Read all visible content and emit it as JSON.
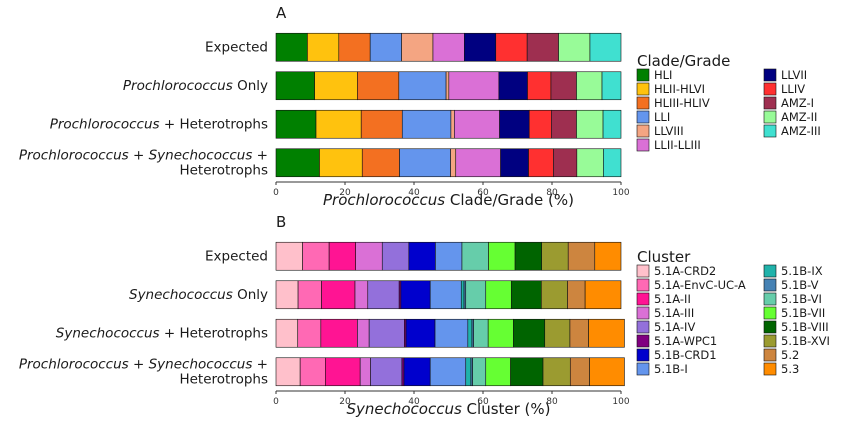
{
  "chart_data": [
    {
      "type": "bar",
      "orientation": "horizontal",
      "stacked": true,
      "panel_label": "A",
      "categories": [
        [
          {
            "t": "Expected",
            "i": false
          }
        ],
        [
          {
            "t": "Prochlorococcus",
            "i": true
          },
          {
            "t": " Only",
            "i": false
          }
        ],
        [
          {
            "t": "Prochlorococcus",
            "i": true
          },
          {
            "t": " + Heterotrophs",
            "i": false
          }
        ],
        [
          {
            "t": "Prochlorococcus",
            "i": true
          },
          {
            "t": " + ",
            "i": false
          },
          {
            "t": "Synechococcus",
            "i": true
          },
          {
            "t": " +",
            "i": false
          },
          {
            "t": "\nHeterotrophs",
            "i": false
          }
        ]
      ],
      "xlabel": [
        {
          "t": "Prochlorococcus",
          "i": true
        },
        {
          "t": " Clade/Grade (%)",
          "i": false
        }
      ],
      "xlim": [
        0,
        100
      ],
      "xticks": [
        "0",
        "20",
        "40",
        "60",
        "80",
        "100"
      ],
      "legend": {
        "title": "Clade/Grade",
        "position": "right",
        "columns": 2
      },
      "series": [
        {
          "name": "HLI",
          "color": "#008000",
          "values": [
            9.1,
            11.2,
            11.6,
            12.6
          ]
        },
        {
          "name": "HLII-HLVI",
          "color": "#FFC20E",
          "values": [
            9.1,
            12.4,
            13.1,
            12.4
          ]
        },
        {
          "name": "HLIII-HLIV",
          "color": "#F37021",
          "values": [
            9.1,
            12.0,
            11.9,
            10.8
          ]
        },
        {
          "name": "LLI",
          "color": "#6495ED",
          "values": [
            9.1,
            13.7,
            14.1,
            14.8
          ]
        },
        {
          "name": "LLVIII",
          "color": "#F4A582",
          "values": [
            9.1,
            0.8,
            1.0,
            1.5
          ]
        },
        {
          "name": "LLII-LLIII",
          "color": "#DA70D6",
          "values": [
            9.1,
            14.5,
            13.1,
            13.0
          ]
        },
        {
          "name": "LLVII",
          "color": "#000080",
          "values": [
            9.1,
            8.3,
            8.6,
            8.1
          ]
        },
        {
          "name": "LLIV",
          "color": "#FF3030",
          "values": [
            9.1,
            6.8,
            6.4,
            7.2
          ]
        },
        {
          "name": "AMZ-I",
          "color": "#9E2F50",
          "values": [
            9.1,
            7.4,
            7.3,
            6.8
          ]
        },
        {
          "name": "AMZ-II",
          "color": "#98FB98",
          "values": [
            9.1,
            7.4,
            7.7,
            7.7
          ]
        },
        {
          "name": "AMZ-III",
          "color": "#40E0D0",
          "values": [
            9.0,
            5.5,
            5.2,
            5.1
          ]
        }
      ]
    },
    {
      "type": "bar",
      "orientation": "horizontal",
      "stacked": true,
      "panel_label": "B",
      "categories": [
        [
          {
            "t": "Expected",
            "i": false
          }
        ],
        [
          {
            "t": "Synechococcus",
            "i": true
          },
          {
            "t": " Only",
            "i": false
          }
        ],
        [
          {
            "t": "Synechococcus",
            "i": true
          },
          {
            "t": " + Heterotrophs",
            "i": false
          }
        ],
        [
          {
            "t": "Prochlorococcus",
            "i": true
          },
          {
            "t": " + ",
            "i": false
          },
          {
            "t": "Synechococcus",
            "i": true
          },
          {
            "t": " +",
            "i": false
          },
          {
            "t": "\nHeterotrophs",
            "i": false
          }
        ]
      ],
      "xlabel": [
        {
          "t": "Synechococcus",
          "i": true
        },
        {
          "t": " Cluster (%)",
          "i": false
        }
      ],
      "xlim": [
        0,
        100
      ],
      "xticks": [
        "0",
        "20",
        "40",
        "60",
        "80",
        "100"
      ],
      "legend": {
        "title": "Cluster",
        "position": "right",
        "columns": 2
      },
      "series": [
        {
          "name": "5.1A-CRD2",
          "color": "#FFC0CB",
          "values": [
            7.7,
            6.4,
            6.3,
            7.0
          ]
        },
        {
          "name": "5.1A-EnvC-UC-A",
          "color": "#FF69B4",
          "values": [
            7.7,
            6.8,
            6.7,
            7.3
          ]
        },
        {
          "name": "5.1A-II",
          "color": "#FF1493",
          "values": [
            7.7,
            9.7,
            10.6,
            10.1
          ]
        },
        {
          "name": "5.1A-III",
          "color": "#DA70D6",
          "values": [
            7.7,
            3.7,
            3.4,
            3.0
          ]
        },
        {
          "name": "5.1A-IV",
          "color": "#9370DB",
          "values": [
            7.7,
            9.1,
            10.2,
            9.1
          ]
        },
        {
          "name": "5.1A-WPC1",
          "color": "#800080",
          "values": [
            0,
            0.5,
            0.5,
            0.6
          ]
        },
        {
          "name": "5.1B-CRD1",
          "color": "#0000CD",
          "values": [
            7.7,
            8.5,
            8.4,
            7.6
          ]
        },
        {
          "name": "5.1B-I",
          "color": "#6495ED",
          "values": [
            7.7,
            9.0,
            9.5,
            10.3
          ]
        },
        {
          "name": "5.1B-IX",
          "color": "#20B2AA",
          "values": [
            0,
            0.8,
            1.2,
            1.5
          ]
        },
        {
          "name": "5.1B-V",
          "color": "#4682B4",
          "values": [
            0,
            0.5,
            0.5,
            0.5
          ]
        },
        {
          "name": "5.1B-VI",
          "color": "#66CDAA",
          "values": [
            7.7,
            5.8,
            4.2,
            3.8
          ]
        },
        {
          "name": "5.1B-VII",
          "color": "#66FF33",
          "values": [
            7.7,
            7.4,
            7.3,
            7.2
          ]
        },
        {
          "name": "5.1B-VIII",
          "color": "#006400",
          "values": [
            7.7,
            8.7,
            9.1,
            9.4
          ]
        },
        {
          "name": "5.1B-XVI",
          "color": "#9B9B30",
          "values": [
            7.7,
            7.6,
            7.3,
            7.9
          ]
        },
        {
          "name": "5.2",
          "color": "#CD853F",
          "values": [
            7.7,
            5.1,
            5.4,
            5.6
          ]
        },
        {
          "name": "5.3",
          "color": "#FF8C00",
          "values": [
            7.6,
            10.4,
            10.4,
            10.1
          ]
        }
      ]
    }
  ]
}
